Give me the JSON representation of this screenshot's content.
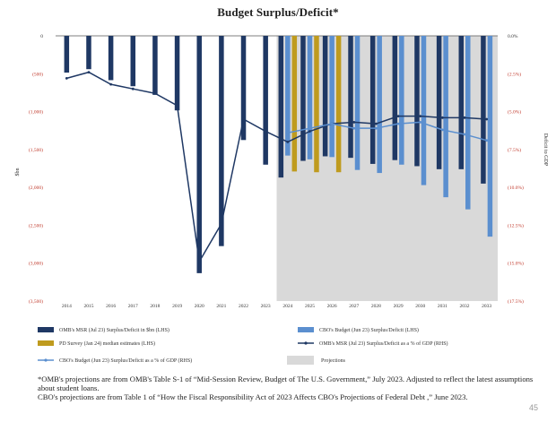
{
  "chart_data": {
    "type": "bar",
    "title": "Budget Surplus/Deficit*",
    "ylabel": "$bn",
    "y2label": "Deficit to GDP",
    "ylim": [
      -3000,
      0
    ],
    "y2lim": [
      -17.5,
      0
    ],
    "yticks": [
      "0",
      "(500)",
      "(1,000)",
      "(1,500)",
      "(2,000)",
      "(2,500)",
      "(3,000)",
      "(3,500)"
    ],
    "y2ticks": [
      "0.0%",
      "(2.5%)",
      "(5.0%)",
      "(7.5%)",
      "(10.0%)",
      "(12.5%)",
      "(15.0%)",
      "(17.5%)"
    ],
    "categories": [
      "2014",
      "2015",
      "2016",
      "2017",
      "2018",
      "2019",
      "2020",
      "2021",
      "2022",
      "2023",
      "2024",
      "2025",
      "2026",
      "2027",
      "2028",
      "2029",
      "2030",
      "2031",
      "2032",
      "2033"
    ],
    "projection_start": "2024",
    "series": [
      {
        "name": "OMB's MSR (Jul 23) Surplus/Deficit in $bn (LHS)",
        "kind": "bar",
        "color": "#1f3864",
        "values": [
          -485,
          -440,
          -585,
          -665,
          -779,
          -984,
          -3132,
          -2775,
          -1375,
          -1700,
          -1870,
          -1650,
          -1590,
          -1610,
          -1690,
          -1640,
          -1720,
          -1760,
          -1760,
          -1950
        ]
      },
      {
        "name": "CBO's Budget (Jun 23) Surplus/Deficit (LHS)",
        "kind": "bar",
        "color": "#5b8fcf",
        "values": [
          null,
          null,
          null,
          null,
          null,
          null,
          null,
          null,
          null,
          null,
          -1580,
          -1630,
          -1600,
          -1770,
          -1810,
          -1700,
          -1970,
          -2130,
          -2290,
          -2650
        ]
      },
      {
        "name": "PD Survey (Jan 24) median estimates (LHS)",
        "kind": "bar",
        "color": "#bf9b1e",
        "values": [
          null,
          null,
          null,
          null,
          null,
          null,
          null,
          null,
          null,
          null,
          -1790,
          -1800,
          -1800,
          null,
          null,
          null,
          null,
          null,
          null,
          null
        ]
      },
      {
        "name": "OMB's MSR (Jul 23) Surplus/Deficit as a % of GDP (RHS)",
        "kind": "line",
        "color": "#1f3864",
        "values": [
          -2.8,
          -2.4,
          -3.2,
          -3.5,
          -3.8,
          -4.6,
          -14.9,
          -12.4,
          -5.5,
          -6.3,
          -7.0,
          -6.3,
          -5.8,
          -5.7,
          -5.8,
          -5.3,
          -5.3,
          -5.4,
          -5.4,
          -5.5
        ]
      },
      {
        "name": "CBO's Budget (Jun 23) Surplus/Deficit as a % of GDP (RHS)",
        "kind": "line",
        "color": "#5b8fcf",
        "values": [
          null,
          null,
          null,
          null,
          null,
          null,
          null,
          null,
          null,
          null,
          -6.4,
          -6.1,
          -5.8,
          -6.1,
          -6.1,
          -5.8,
          -5.7,
          -6.2,
          -6.5,
          -6.9
        ]
      }
    ],
    "legend": {
      "position": "bottom",
      "items": [
        {
          "label": "OMB's MSR (Jul 23) Surplus/Deficit in $bn (LHS)",
          "swatch": "bar",
          "color": "#1f3864"
        },
        {
          "label": "CBO's Budget (Jun 23) Surplus/Deficit (LHS)",
          "swatch": "bar",
          "color": "#5b8fcf"
        },
        {
          "label": "PD Survey (Jan 24) median estimates (LHS)",
          "swatch": "bar",
          "color": "#bf9b1e"
        },
        {
          "label": "OMB's MSR (Jul 23) Surplus/Deficit as a % of GDP (RHS)",
          "swatch": "line",
          "color": "#1f3864"
        },
        {
          "label": "CBO's Budget (Jun 23) Surplus/Deficit as a % of GDP (RHS)",
          "swatch": "line",
          "color": "#5b8fcf"
        },
        {
          "label": "Projections",
          "swatch": "area",
          "color": "#d9d9d9"
        }
      ]
    }
  },
  "footnote": {
    "line1": "*OMB's projections are from OMB's Table S-1 of “Mid-Session Review, Budget of The U.S. Government,” July 2023. Adjusted to reflect the latest assumptions about student loans.",
    "line2": "CBO's projections are from Table 1 of “How the Fiscal Responsibility Act of 2023 Affects CBO's Projections of Federal Debt ,” June 2023."
  },
  "page_number": "45"
}
